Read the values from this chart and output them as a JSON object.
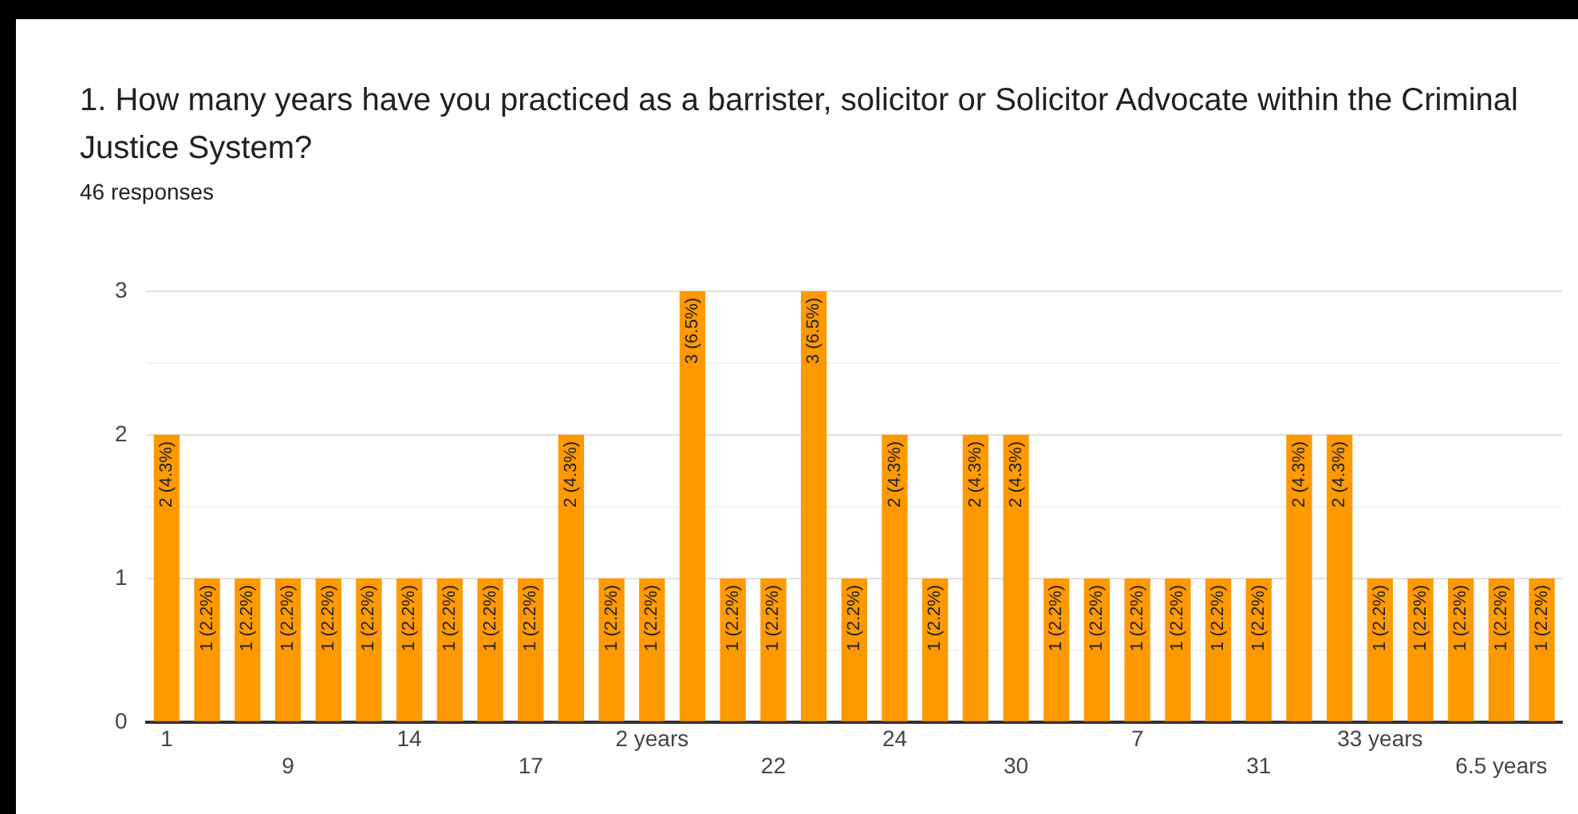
{
  "chart_data": {
    "type": "bar",
    "title": "1. How many years have you practiced as a barrister, solicitor or Solicitor Advocate within the Criminal Justice System?",
    "subtitle": "46 responses",
    "categories": [
      "1",
      null,
      null,
      "9",
      null,
      null,
      "14",
      null,
      null,
      "17",
      null,
      null,
      "2 years",
      null,
      null,
      "22",
      null,
      null,
      "24",
      null,
      null,
      "30",
      null,
      null,
      "7",
      null,
      null,
      "31",
      null,
      null,
      "33 years",
      null,
      null,
      "6.5 years",
      null
    ],
    "values": [
      2,
      1,
      1,
      1,
      1,
      1,
      1,
      1,
      1,
      1,
      2,
      1,
      1,
      3,
      1,
      1,
      3,
      1,
      2,
      1,
      2,
      2,
      1,
      1,
      1,
      1,
      1,
      1,
      2,
      2,
      1,
      1,
      1,
      1,
      1
    ],
    "value_labels": [
      "2 (4.3%)",
      "1 (2.2%)",
      "1 (2.2%)",
      "1 (2.2%)",
      "1 (2.2%)",
      "1 (2.2%)",
      "1 (2.2%)",
      "1 (2.2%)",
      "1 (2.2%)",
      "1 (2.2%)",
      "2 (4.3%)",
      "1 (2.2%)",
      "1 (2.2%)",
      "3 (6.5%)",
      "1 (2.2%)",
      "1 (2.2%)",
      "3 (6.5%)",
      "1 (2.2%)",
      "2 (4.3%)",
      "1 (2.2%)",
      "2 (4.3%)",
      "2 (4.3%)",
      "1 (2.2%)",
      "1 (2.2%)",
      "1 (2.2%)",
      "1 (2.2%)",
      "1 (2.2%)",
      "1 (2.2%)",
      "2 (4.3%)",
      "2 (4.3%)",
      "1 (2.2%)",
      "1 (2.2%)",
      "1 (2.2%)",
      "1 (2.2%)",
      "1 (2.2%)"
    ],
    "color": "#ff9900",
    "ylim": [
      0,
      3
    ],
    "yticks": [
      0,
      {
        "value": 0.5,
        "label": null
      },
      1,
      {
        "value": 1.5,
        "label": null
      },
      2,
      {
        "value": 2.5,
        "label": null
      },
      3
    ],
    "grid": true,
    "legend": false
  }
}
